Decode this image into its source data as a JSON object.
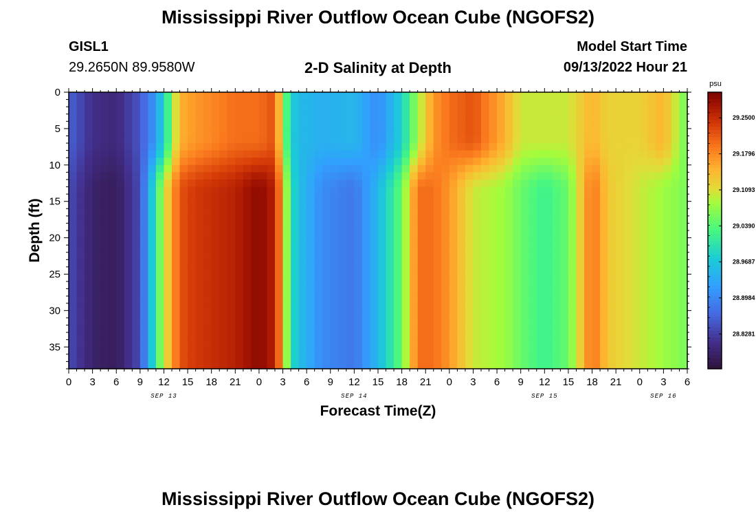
{
  "page": {
    "title": "Mississippi River Outflow Ocean Cube (NGOFS2)",
    "title_repeat": "Mississippi River Outflow Ocean Cube (NGOFS2)",
    "station_id": "GISL1",
    "station_coords": "29.2650N  89.9580W",
    "model_start_label": "Model Start Time",
    "model_start_value": "09/13/2022 Hour 21"
  },
  "chart_data": {
    "type": "heatmap",
    "title": "2-D Salinity at Depth",
    "xlabel": "Forecast Time(Z)",
    "ylabel": "Depth (ft)",
    "x_tick_labels": [
      "0",
      "3",
      "6",
      "9",
      "12",
      "15",
      "18",
      "21",
      "0",
      "3",
      "6",
      "9",
      "12",
      "15",
      "18",
      "21",
      "0",
      "3",
      "6",
      "9",
      "12",
      "15",
      "18",
      "21",
      "0",
      "3",
      "6"
    ],
    "date_labels": [
      {
        "label": "SEP 13",
        "at_hour": 12
      },
      {
        "label": "SEP 14",
        "at_hour": 36
      },
      {
        "label": "SEP 15",
        "at_hour": 60
      },
      {
        "label": "SEP 16",
        "at_hour": 75
      }
    ],
    "x_range_hours": [
      0,
      78
    ],
    "y_ticks": [
      0,
      5,
      10,
      15,
      20,
      25,
      30,
      35
    ],
    "y_range_ft": [
      0,
      38
    ],
    "colorbar": {
      "unit": "psu",
      "range": [
        28.76,
        29.3
      ],
      "tick_labels": [
        "29.2500",
        "29.1796",
        "29.1093",
        "29.0390",
        "28.9687",
        "28.8984",
        "28.8281"
      ]
    },
    "salinity_profile": {
      "hours": [
        0,
        3,
        6,
        9,
        10.5,
        12,
        14,
        16,
        21,
        24,
        26,
        27,
        28,
        29,
        30,
        32,
        36,
        39,
        42,
        44,
        46,
        48,
        51,
        55,
        57,
        60,
        63,
        66,
        68,
        72,
        75,
        78
      ],
      "surface": [
        28.86,
        28.81,
        28.8,
        28.85,
        28.9,
        28.98,
        29.15,
        29.17,
        29.2,
        29.2,
        29.22,
        29.08,
        28.98,
        28.95,
        28.95,
        28.94,
        28.95,
        28.9,
        28.98,
        29.08,
        29.17,
        29.2,
        29.22,
        29.15,
        29.1,
        29.1,
        29.1,
        29.15,
        29.12,
        29.12,
        29.15,
        29.05
      ],
      "bottom": [
        28.84,
        28.79,
        28.78,
        28.84,
        28.97,
        29.1,
        29.22,
        29.24,
        29.26,
        29.29,
        29.26,
        29.15,
        29.0,
        28.96,
        28.94,
        28.9,
        28.88,
        28.95,
        29.05,
        29.2,
        29.2,
        29.17,
        29.1,
        29.08,
        29.05,
        29.02,
        29.05,
        29.2,
        29.13,
        29.1,
        29.08,
        29.06
      ]
    }
  }
}
